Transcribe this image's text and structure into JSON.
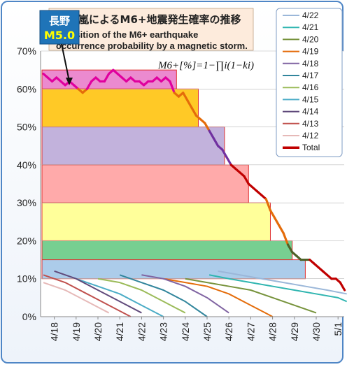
{
  "chart_data": {
    "type": "line",
    "title": "磁気嵐によるM6+地震発生確率の推移",
    "subtitle": "Transition of the M6+ earthquake occurrence probability by a magnetic storm.",
    "formula": "M6+[%]=1−∏i(1−ki)",
    "badge": {
      "line1": "長野",
      "line2": "M5.0"
    },
    "y_ticks": [
      "0%",
      "10%",
      "20%",
      "30%",
      "40%",
      "50%",
      "60%",
      "70%"
    ],
    "ylim": [
      0,
      70
    ],
    "x_ticks": [
      "4/18",
      "4/19",
      "4/20",
      "4/21",
      "4/22",
      "4/23",
      "4/24",
      "4/25",
      "4/26",
      "4/27",
      "4/28",
      "4/29",
      "4/30",
      "5/1"
    ],
    "grid": true,
    "legend_position": "right",
    "legend": [
      {
        "name": "4/22",
        "color": "#9bb7d9"
      },
      {
        "name": "4/21",
        "color": "#2fb5b0"
      },
      {
        "name": "4/20",
        "color": "#77933c"
      },
      {
        "name": "4/19",
        "color": "#e46c0a"
      },
      {
        "name": "4/18",
        "color": "#8064a2"
      },
      {
        "name": "4/17",
        "color": "#31859c"
      },
      {
        "name": "4/16",
        "color": "#9bbb59"
      },
      {
        "name": "4/15",
        "color": "#4bacc6"
      },
      {
        "name": "4/14",
        "color": "#604a7b"
      },
      {
        "name": "4/13",
        "color": "#c0504d"
      },
      {
        "name": "4/12",
        "color": "#e6b9b8"
      },
      {
        "name": "Total",
        "color": "#c00000"
      }
    ],
    "bands": [
      {
        "from_day": 0.0,
        "to_day": 6.1,
        "low": 60,
        "high": 65,
        "color": "#e876c7"
      },
      {
        "from_day": 0.0,
        "to_day": 7.1,
        "low": 50,
        "high": 60,
        "color": "#ffc000"
      },
      {
        "from_day": 0.0,
        "to_day": 8.3,
        "low": 40,
        "high": 50,
        "color": "#b7a5d6"
      },
      {
        "from_day": 0.0,
        "to_day": 9.4,
        "low": 30,
        "high": 40,
        "color": "#ff9b9b"
      },
      {
        "from_day": 0.0,
        "to_day": 10.4,
        "low": 20,
        "high": 30,
        "color": "#ffff88"
      },
      {
        "from_day": 0.0,
        "to_day": 11.4,
        "low": 15,
        "high": 20,
        "color": "#5fc77e"
      },
      {
        "from_day": 0.0,
        "to_day": 12.0,
        "low": 10,
        "high": 15,
        "color": "#9dc3e6"
      }
    ],
    "total_series": {
      "name": "Total",
      "x_days": [
        0.0,
        0.2,
        0.4,
        0.6,
        0.8,
        1.0,
        1.2,
        1.4,
        1.6,
        1.8,
        2.0,
        2.2,
        2.4,
        2.6,
        2.8,
        3.0,
        3.2,
        3.4,
        3.6,
        3.8,
        4.0,
        4.2,
        4.4,
        4.6,
        4.8,
        5.0,
        5.2,
        5.4,
        5.6,
        5.8,
        6.0,
        6.2,
        6.4,
        6.6,
        6.8,
        7.0,
        7.2,
        7.4,
        7.6,
        7.8,
        8.0,
        8.2,
        8.4,
        8.6,
        8.8,
        9.0,
        9.2,
        9.4,
        9.6,
        9.8,
        10.0,
        10.2,
        10.4,
        10.6,
        10.8,
        11.0,
        11.2,
        11.4,
        11.6,
        11.8,
        12.0,
        12.2,
        12.4,
        12.6,
        12.8,
        13.0,
        13.2,
        13.4,
        13.6,
        13.8
      ],
      "values": [
        64,
        63,
        62,
        63,
        62,
        61,
        62,
        61,
        60,
        59,
        60,
        62,
        63,
        62,
        62,
        64,
        65,
        64,
        63,
        62,
        63,
        62,
        62,
        61,
        62,
        62,
        63,
        62,
        63,
        62,
        59,
        58,
        59,
        57,
        55,
        53,
        52,
        51,
        49,
        47,
        45,
        44,
        42,
        40,
        39,
        38,
        37,
        35,
        34,
        33,
        32,
        31,
        28,
        26,
        24,
        22,
        19,
        17,
        16,
        15,
        15,
        15,
        14,
        13,
        12,
        11,
        10,
        10,
        9,
        7
      ]
    },
    "component_series": [
      {
        "name": "4/22",
        "x_days": [
          8.0,
          9.0,
          10.0,
          11.0,
          12.0,
          13.0,
          13.9
        ],
        "values": [
          12,
          11,
          10,
          9,
          8,
          7,
          6
        ]
      },
      {
        "name": "4/21",
        "x_days": [
          7.6,
          8.5,
          9.5,
          10.5,
          11.5,
          12.5,
          13.5,
          13.9
        ],
        "values": [
          11,
          10,
          9,
          8,
          7,
          6,
          5,
          4
        ]
      },
      {
        "name": "4/20",
        "x_days": [
          6.5,
          7.5,
          8.5,
          9.5,
          10.5,
          11.5,
          12.5
        ],
        "values": [
          10,
          9,
          8,
          7,
          5,
          3,
          1
        ]
      },
      {
        "name": "4/19",
        "x_days": [
          5.5,
          6.5,
          7.5,
          8.5,
          9.5,
          10.5
        ],
        "values": [
          10,
          9,
          8,
          6,
          3,
          0
        ]
      },
      {
        "name": "4/18",
        "x_days": [
          4.5,
          5.5,
          6.5,
          7.5,
          8.5
        ],
        "values": [
          11,
          10,
          8,
          5,
          1
        ]
      },
      {
        "name": "4/17",
        "x_days": [
          3.5,
          4.5,
          5.5,
          6.5,
          7.5
        ],
        "values": [
          11,
          9,
          7,
          4,
          0
        ]
      },
      {
        "name": "4/16",
        "x_days": [
          2.5,
          3.5,
          4.5,
          5.5,
          6.5
        ],
        "values": [
          10,
          9,
          7,
          4,
          1
        ]
      },
      {
        "name": "4/15",
        "x_days": [
          1.5,
          2.5,
          3.5,
          4.5,
          5.5
        ],
        "values": [
          10,
          8,
          6,
          3,
          0
        ]
      },
      {
        "name": "4/14",
        "x_days": [
          0.5,
          1.5,
          2.5,
          3.5,
          4.5
        ],
        "values": [
          12,
          10,
          7,
          4,
          1
        ]
      },
      {
        "name": "4/13",
        "x_days": [
          0.0,
          1.0,
          2.0,
          3.0,
          4.0
        ],
        "values": [
          11,
          9,
          6,
          3,
          0
        ]
      },
      {
        "name": "4/12",
        "x_days": [
          0.0,
          1.0,
          2.0,
          3.0
        ],
        "values": [
          9,
          7,
          4,
          1
        ]
      }
    ]
  }
}
